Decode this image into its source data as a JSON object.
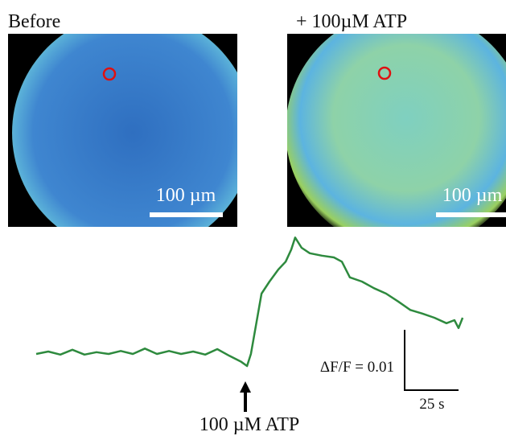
{
  "panels": [
    {
      "label": "Before",
      "scale_label": "100 µm"
    },
    {
      "label": "+ 100µM ATP",
      "scale_label": "100 µm"
    }
  ],
  "trace": {
    "t": [
      0,
      5.6,
      11.2,
      16.8,
      22.4,
      28.0,
      33.6,
      39.2,
      44.8,
      50.4,
      56.0,
      61.6,
      67.2,
      72.8,
      78.4,
      84.0,
      89.6,
      95.1,
      97.8,
      99.6,
      101.9,
      104.5,
      108.2,
      112.3,
      115.7,
      118.3,
      120.1,
      123.1,
      126.9,
      132.5,
      138.1,
      141.8,
      145.5,
      151.1,
      156.7,
      162.3,
      167.9,
      173.5,
      179.1,
      184.7,
      190.3,
      194.0,
      195.9,
      197.8
    ],
    "dff": [
      0,
      0.0004,
      -0.0001,
      0.0007,
      -0.0001,
      0.0003,
      0,
      0.0005,
      0,
      0.0009,
      0,
      0.0005,
      0,
      0.0004,
      -0.0001,
      0.0008,
      -0.0003,
      -0.0013,
      -0.002,
      0,
      0.0047,
      0.01,
      0.012,
      0.014,
      0.0153,
      0.0173,
      0.0193,
      0.0176,
      0.0167,
      0.0163,
      0.016,
      0.0153,
      0.0127,
      0.012,
      0.0109,
      0.01,
      0.0087,
      0.0073,
      0.0067,
      0.006,
      0.0051,
      0.0056,
      0.0043,
      0.006
    ]
  },
  "stimulus_label": "100 µM ATP",
  "scale_bar": {
    "y_label": "ΔF/F = 0.01",
    "x_label": "25 s"
  }
}
